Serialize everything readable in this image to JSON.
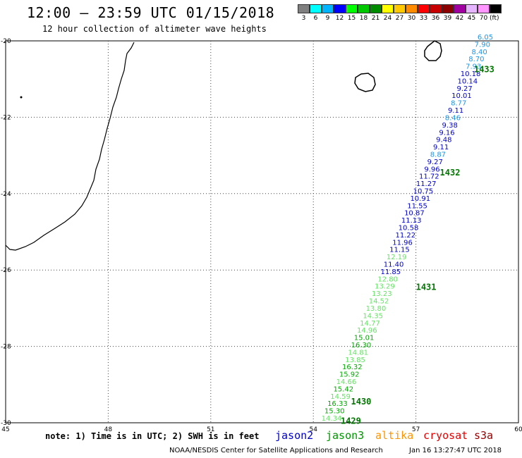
{
  "header": {
    "title": "12:00 – 23:59 UTC 01/15/2018",
    "subtitle": "12 hour collection of altimeter wave heights"
  },
  "legend": {
    "unit": "(ft)",
    "items": [
      {
        "label": "3",
        "color": "#7f7f7f"
      },
      {
        "label": "6",
        "color": "#00ffff"
      },
      {
        "label": "9",
        "color": "#00b4ff"
      },
      {
        "label": "12",
        "color": "#0000ff"
      },
      {
        "label": "15",
        "color": "#00ff00"
      },
      {
        "label": "18",
        "color": "#00c800"
      },
      {
        "label": "21",
        "color": "#008c00"
      },
      {
        "label": "24",
        "color": "#ffff00"
      },
      {
        "label": "27",
        "color": "#ffc800"
      },
      {
        "label": "30",
        "color": "#ff8c00"
      },
      {
        "label": "33",
        "color": "#ff0000"
      },
      {
        "label": "36",
        "color": "#c80000"
      },
      {
        "label": "39",
        "color": "#8c0000"
      },
      {
        "label": "42",
        "color": "#a000a0"
      },
      {
        "label": "45",
        "color": "#e6b4ff"
      },
      {
        "label": "70",
        "color": "#ff96ff"
      },
      {
        "label": "",
        "color": "#000000"
      }
    ]
  },
  "map": {
    "lon_range": [
      45,
      60
    ],
    "lat_range": [
      -30,
      -20
    ],
    "lon_ticks": [
      "45",
      "48",
      "51",
      "54",
      "57",
      "60"
    ],
    "lat_ticks": [
      "-20",
      "-22",
      "-24",
      "-26",
      "-28",
      "-30"
    ],
    "track_labels": [
      {
        "text": "1433",
        "lon": 58.7,
        "lat": -20.75
      },
      {
        "text": "1432",
        "lon": 57.7,
        "lat": -23.45
      },
      {
        "text": "1431",
        "lon": 57.0,
        "lat": -26.45
      },
      {
        "text": "1430",
        "lon": 55.1,
        "lat": -29.45
      },
      {
        "text": "1429",
        "lon": 54.8,
        "lat": -29.95
      }
    ],
    "observations": [
      {
        "v": "14.34",
        "c": "#66e266"
      },
      {
        "v": "15.30",
        "c": "#00aa00"
      },
      {
        "v": "16.33",
        "c": "#00aa00"
      },
      {
        "v": "14.59",
        "c": "#66e266"
      },
      {
        "v": "15.42",
        "c": "#00aa00"
      },
      {
        "v": "14.66",
        "c": "#66e266"
      },
      {
        "v": "15.92",
        "c": "#00aa00"
      },
      {
        "v": "16.32",
        "c": "#00aa00"
      },
      {
        "v": "13.85",
        "c": "#66e266"
      },
      {
        "v": "14.81",
        "c": "#66e266"
      },
      {
        "v": "16.30",
        "c": "#00aa00"
      },
      {
        "v": "15.01",
        "c": "#00aa00"
      },
      {
        "v": "14.96",
        "c": "#66e266"
      },
      {
        "v": "14.77",
        "c": "#66e266"
      },
      {
        "v": "14.35",
        "c": "#66e266"
      },
      {
        "v": "13.80",
        "c": "#66e266"
      },
      {
        "v": "14.52",
        "c": "#66e266"
      },
      {
        "v": "13.23",
        "c": "#66e266"
      },
      {
        "v": "13.29",
        "c": "#66e266"
      },
      {
        "v": "12.80",
        "c": "#66e266"
      },
      {
        "v": "11.85",
        "c": "#0000cc"
      },
      {
        "v": "11.40",
        "c": "#0000cc"
      },
      {
        "v": "12.19",
        "c": "#66e266"
      },
      {
        "v": "11.15",
        "c": "#0000cc"
      },
      {
        "v": "11.96",
        "c": "#0000cc"
      },
      {
        "v": "11.22",
        "c": "#0000cc"
      },
      {
        "v": "10.58",
        "c": "#0000cc"
      },
      {
        "v": "11.13",
        "c": "#0000cc"
      },
      {
        "v": "10.87",
        "c": "#0000cc"
      },
      {
        "v": "11.55",
        "c": "#0000cc"
      },
      {
        "v": "10.91",
        "c": "#0000cc"
      },
      {
        "v": "10.75",
        "c": "#0000cc"
      },
      {
        "v": "11.27",
        "c": "#0000cc"
      },
      {
        "v": "11.72",
        "c": "#0000cc"
      },
      {
        "v": "9.96",
        "c": "#0000cc"
      },
      {
        "v": "9.27",
        "c": "#0000cc"
      },
      {
        "v": "8.87",
        "c": "#1e96e6"
      },
      {
        "v": "9.11",
        "c": "#0000cc"
      },
      {
        "v": "9.48",
        "c": "#0000cc"
      },
      {
        "v": "9.16",
        "c": "#0000cc"
      },
      {
        "v": "9.38",
        "c": "#0000cc"
      },
      {
        "v": "8.46",
        "c": "#1e96e6"
      },
      {
        "v": "9.11",
        "c": "#0000cc"
      },
      {
        "v": "8.77",
        "c": "#1e96e6"
      },
      {
        "v": "10.01",
        "c": "#0000cc"
      },
      {
        "v": "9.27",
        "c": "#0000cc"
      },
      {
        "v": "10.14",
        "c": "#0000cc"
      },
      {
        "v": "10.18",
        "c": "#0000cc"
      },
      {
        "v": "7.93",
        "c": "#1e96e6"
      },
      {
        "v": "8.70",
        "c": "#1e96e6"
      },
      {
        "v": "8.40",
        "c": "#1e96e6"
      },
      {
        "v": "7.90",
        "c": "#1e96e6"
      },
      {
        "v": "6.05",
        "c": "#1e96e6"
      }
    ]
  },
  "note": "note: 1) Time is in UTC; 2) SWH is in feet",
  "satellites": [
    {
      "name": "jason2",
      "color": "#0000cc"
    },
    {
      "name": "jason3",
      "color": "#009600"
    },
    {
      "name": "altika",
      "color": "#ff9600"
    },
    {
      "name": "cryosat",
      "color": "#e60000"
    },
    {
      "name": "s3a",
      "color": "#960000"
    }
  ],
  "footer": {
    "credit": "NOAA/NESDIS Center for Satellite Applications and Research",
    "timestamp": "Jan 16 13:27:47 UTC 2018"
  }
}
